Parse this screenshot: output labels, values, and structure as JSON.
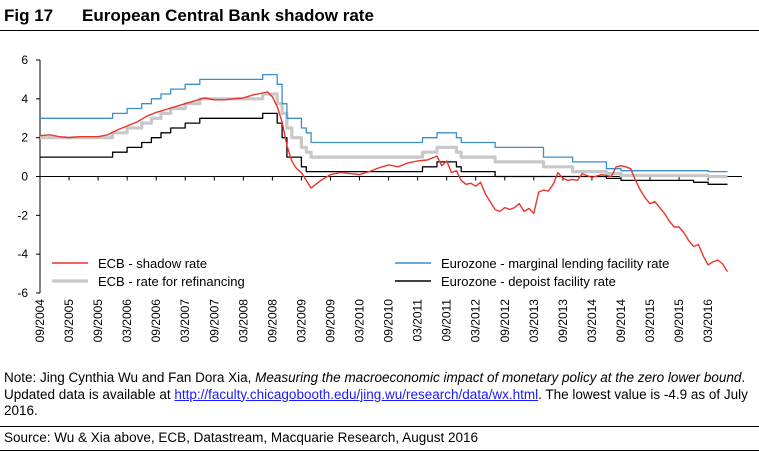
{
  "figure": {
    "number": "Fig 17",
    "title": "European Central Bank shadow rate"
  },
  "note": {
    "prefix": "Note: Jing Cynthia Wu and Fan Dora Xia, ",
    "italic": "Measuring the macroeconomic impact of monetary policy at the zero lower bound",
    "middle": ". Updated data is available at ",
    "link": "http://faculty.chicagobooth.edu/jing.wu/research/data/wx.html",
    "suffix": ". The lowest value is -4.9 as of July 2016."
  },
  "source": "Source: Wu & Xia above, ECB, Datastream, Macquarie Research, August 2016",
  "colors": {
    "shadow": "#e8352b",
    "refi": "#c8c8c8",
    "marginal": "#3a8fc8",
    "deposit": "#000000"
  },
  "chart_data": {
    "type": "line",
    "title": "European Central Bank shadow rate",
    "xlabel": "",
    "ylabel": "",
    "ylim": [
      -6,
      6
    ],
    "yticks": [
      "-6",
      "-4",
      "-2",
      "0",
      "2",
      "4",
      "6"
    ],
    "xlim": [
      "2004-09",
      "2016-10"
    ],
    "xticks": [
      "09/2004",
      "03/2005",
      "09/2005",
      "03/2006",
      "09/2006",
      "03/2007",
      "09/2007",
      "03/2008",
      "09/2008",
      "03/2009",
      "09/2009",
      "03/2010",
      "09/2010",
      "03/2011",
      "09/2011",
      "03/2012",
      "09/2012",
      "03/2013",
      "09/2013",
      "03/2014",
      "09/2014",
      "03/2015",
      "09/2015",
      "03/2016"
    ],
    "grid": false,
    "legend_position": "bottom",
    "legend_order": [
      "ECB - shadow rate",
      "Eurozone - marginal lending facility rate",
      "ECB - rate for refinancing",
      "Eurozone - depoist facility rate"
    ],
    "series": [
      {
        "name": "ECB - shadow rate",
        "color_key": "shadow",
        "width": 1.4,
        "points": [
          [
            "2004-09",
            2.1
          ],
          [
            "2004-11",
            2.15
          ],
          [
            "2005-01",
            2.05
          ],
          [
            "2005-03",
            2.0
          ],
          [
            "2005-05",
            2.05
          ],
          [
            "2005-07",
            2.05
          ],
          [
            "2005-09",
            2.05
          ],
          [
            "2005-11",
            2.15
          ],
          [
            "2006-01",
            2.4
          ],
          [
            "2006-03",
            2.6
          ],
          [
            "2006-05",
            2.8
          ],
          [
            "2006-07",
            3.1
          ],
          [
            "2006-09",
            3.3
          ],
          [
            "2006-11",
            3.45
          ],
          [
            "2007-01",
            3.6
          ],
          [
            "2007-03",
            3.75
          ],
          [
            "2007-05",
            3.9
          ],
          [
            "2007-07",
            4.05
          ],
          [
            "2007-09",
            3.95
          ],
          [
            "2007-11",
            3.95
          ],
          [
            "2008-01",
            4.0
          ],
          [
            "2008-03",
            4.05
          ],
          [
            "2008-05",
            4.2
          ],
          [
            "2008-07",
            4.3
          ],
          [
            "2008-08",
            4.35
          ],
          [
            "2008-09",
            4.1
          ],
          [
            "2008-10",
            3.6
          ],
          [
            "2008-11",
            2.8
          ],
          [
            "2008-12",
            1.6
          ],
          [
            "2009-01",
            0.8
          ],
          [
            "2009-02",
            0.4
          ],
          [
            "2009-03",
            0.2
          ],
          [
            "2009-04",
            -0.2
          ],
          [
            "2009-05",
            -0.6
          ],
          [
            "2009-07",
            -0.2
          ],
          [
            "2009-09",
            0.1
          ],
          [
            "2009-11",
            0.2
          ],
          [
            "2010-01",
            0.15
          ],
          [
            "2010-03",
            0.1
          ],
          [
            "2010-05",
            0.25
          ],
          [
            "2010-07",
            0.45
          ],
          [
            "2010-09",
            0.6
          ],
          [
            "2010-11",
            0.5
          ],
          [
            "2011-01",
            0.7
          ],
          [
            "2011-03",
            0.8
          ],
          [
            "2011-05",
            0.85
          ],
          [
            "2011-07",
            1.05
          ],
          [
            "2011-08",
            0.55
          ],
          [
            "2011-09",
            0.8
          ],
          [
            "2011-10",
            0.2
          ],
          [
            "2011-11",
            0.3
          ],
          [
            "2011-12",
            -0.2
          ],
          [
            "2012-01",
            -0.4
          ],
          [
            "2012-02",
            -0.35
          ],
          [
            "2012-03",
            -0.5
          ],
          [
            "2012-04",
            -0.3
          ],
          [
            "2012-05",
            -0.9
          ],
          [
            "2012-06",
            -1.3
          ],
          [
            "2012-07",
            -1.7
          ],
          [
            "2012-08",
            -1.8
          ],
          [
            "2012-09",
            -1.6
          ],
          [
            "2012-10",
            -1.7
          ],
          [
            "2012-11",
            -1.6
          ],
          [
            "2012-12",
            -1.4
          ],
          [
            "2013-01",
            -1.8
          ],
          [
            "2013-02",
            -1.65
          ],
          [
            "2013-03",
            -1.9
          ],
          [
            "2013-04",
            -0.8
          ],
          [
            "2013-05",
            -0.7
          ],
          [
            "2013-06",
            -0.75
          ],
          [
            "2013-07",
            -0.4
          ],
          [
            "2013-08",
            0.2
          ],
          [
            "2013-09",
            -0.1
          ],
          [
            "2013-10",
            -0.2
          ],
          [
            "2013-11",
            -0.15
          ],
          [
            "2013-12",
            -0.2
          ],
          [
            "2014-01",
            0.15
          ],
          [
            "2014-03",
            -0.05
          ],
          [
            "2014-05",
            0.1
          ],
          [
            "2014-07",
            0.0
          ],
          [
            "2014-08",
            0.5
          ],
          [
            "2014-09",
            0.55
          ],
          [
            "2014-10",
            0.5
          ],
          [
            "2014-11",
            0.4
          ],
          [
            "2014-12",
            -0.2
          ],
          [
            "2015-01",
            -0.7
          ],
          [
            "2015-02",
            -1.1
          ],
          [
            "2015-03",
            -1.4
          ],
          [
            "2015-04",
            -1.3
          ],
          [
            "2015-05",
            -1.6
          ],
          [
            "2015-06",
            -1.9
          ],
          [
            "2015-07",
            -2.3
          ],
          [
            "2015-08",
            -2.6
          ],
          [
            "2015-09",
            -2.6
          ],
          [
            "2015-10",
            -2.9
          ],
          [
            "2015-11",
            -3.3
          ],
          [
            "2015-12",
            -3.6
          ],
          [
            "2016-01",
            -3.5
          ],
          [
            "2016-02",
            -4.1
          ],
          [
            "2016-03",
            -4.55
          ],
          [
            "2016-04",
            -4.4
          ],
          [
            "2016-05",
            -4.3
          ],
          [
            "2016-06",
            -4.5
          ],
          [
            "2016-07",
            -4.9
          ]
        ]
      },
      {
        "name": "Eurozone - marginal lending facility rate",
        "color_key": "marginal",
        "width": 1.3,
        "points": [
          [
            "2004-09",
            3.0
          ],
          [
            "2005-12",
            3.0
          ],
          [
            "2005-12",
            3.25
          ],
          [
            "2006-03",
            3.25
          ],
          [
            "2006-03",
            3.5
          ],
          [
            "2006-06",
            3.5
          ],
          [
            "2006-06",
            3.75
          ],
          [
            "2006-08",
            3.75
          ],
          [
            "2006-08",
            4.0
          ],
          [
            "2006-10",
            4.0
          ],
          [
            "2006-10",
            4.25
          ],
          [
            "2006-12",
            4.25
          ],
          [
            "2006-12",
            4.5
          ],
          [
            "2007-03",
            4.5
          ],
          [
            "2007-03",
            4.75
          ],
          [
            "2007-06",
            4.75
          ],
          [
            "2007-06",
            5.0
          ],
          [
            "2008-07",
            5.0
          ],
          [
            "2008-07",
            5.25
          ],
          [
            "2008-10",
            5.25
          ],
          [
            "2008-10",
            4.75
          ],
          [
            "2008-11",
            4.75
          ],
          [
            "2008-11",
            3.75
          ],
          [
            "2008-12",
            3.75
          ],
          [
            "2008-12",
            3.0
          ],
          [
            "2009-01",
            3.0
          ],
          [
            "2009-01",
            3.0
          ],
          [
            "2009-03",
            3.0
          ],
          [
            "2009-03",
            2.5
          ],
          [
            "2009-04",
            2.5
          ],
          [
            "2009-04",
            2.25
          ],
          [
            "2009-05",
            2.25
          ],
          [
            "2009-05",
            1.75
          ],
          [
            "2011-04",
            1.75
          ],
          [
            "2011-04",
            2.0
          ],
          [
            "2011-07",
            2.0
          ],
          [
            "2011-07",
            2.25
          ],
          [
            "2011-11",
            2.25
          ],
          [
            "2011-11",
            2.0
          ],
          [
            "2011-12",
            2.0
          ],
          [
            "2011-12",
            1.75
          ],
          [
            "2012-07",
            1.75
          ],
          [
            "2012-07",
            1.5
          ],
          [
            "2013-05",
            1.5
          ],
          [
            "2013-05",
            1.0
          ],
          [
            "2013-11",
            1.0
          ],
          [
            "2013-11",
            0.75
          ],
          [
            "2014-06",
            0.75
          ],
          [
            "2014-06",
            0.4
          ],
          [
            "2014-09",
            0.4
          ],
          [
            "2014-09",
            0.3
          ],
          [
            "2016-03",
            0.3
          ],
          [
            "2016-03",
            0.25
          ],
          [
            "2016-07",
            0.25
          ]
        ]
      },
      {
        "name": "ECB - rate for refinancing",
        "color_key": "refi",
        "width": 3.2,
        "points": [
          [
            "2004-09",
            2.0
          ],
          [
            "2005-12",
            2.0
          ],
          [
            "2005-12",
            2.25
          ],
          [
            "2006-03",
            2.25
          ],
          [
            "2006-03",
            2.5
          ],
          [
            "2006-06",
            2.5
          ],
          [
            "2006-06",
            2.75
          ],
          [
            "2006-08",
            2.75
          ],
          [
            "2006-08",
            3.0
          ],
          [
            "2006-10",
            3.0
          ],
          [
            "2006-10",
            3.25
          ],
          [
            "2006-12",
            3.25
          ],
          [
            "2006-12",
            3.5
          ],
          [
            "2007-03",
            3.5
          ],
          [
            "2007-03",
            3.75
          ],
          [
            "2007-06",
            3.75
          ],
          [
            "2007-06",
            4.0
          ],
          [
            "2008-07",
            4.0
          ],
          [
            "2008-07",
            4.25
          ],
          [
            "2008-10",
            4.25
          ],
          [
            "2008-10",
            3.75
          ],
          [
            "2008-11",
            3.75
          ],
          [
            "2008-11",
            3.25
          ],
          [
            "2008-12",
            3.25
          ],
          [
            "2008-12",
            2.5
          ],
          [
            "2009-01",
            2.5
          ],
          [
            "2009-01",
            2.0
          ],
          [
            "2009-03",
            2.0
          ],
          [
            "2009-03",
            1.5
          ],
          [
            "2009-04",
            1.5
          ],
          [
            "2009-04",
            1.25
          ],
          [
            "2009-05",
            1.25
          ],
          [
            "2009-05",
            1.0
          ],
          [
            "2011-04",
            1.0
          ],
          [
            "2011-04",
            1.25
          ],
          [
            "2011-07",
            1.25
          ],
          [
            "2011-07",
            1.5
          ],
          [
            "2011-11",
            1.5
          ],
          [
            "2011-11",
            1.25
          ],
          [
            "2011-12",
            1.25
          ],
          [
            "2011-12",
            1.0
          ],
          [
            "2012-07",
            1.0
          ],
          [
            "2012-07",
            0.75
          ],
          [
            "2013-05",
            0.75
          ],
          [
            "2013-05",
            0.5
          ],
          [
            "2013-11",
            0.5
          ],
          [
            "2013-11",
            0.25
          ],
          [
            "2014-06",
            0.25
          ],
          [
            "2014-06",
            0.15
          ],
          [
            "2014-09",
            0.15
          ],
          [
            "2014-09",
            0.05
          ],
          [
            "2016-03",
            0.05
          ],
          [
            "2016-03",
            0.0
          ],
          [
            "2016-07",
            0.0
          ]
        ]
      },
      {
        "name": "Eurozone - depoist facility rate",
        "color_key": "deposit",
        "width": 1.3,
        "points": [
          [
            "2004-09",
            1.0
          ],
          [
            "2005-12",
            1.0
          ],
          [
            "2005-12",
            1.25
          ],
          [
            "2006-03",
            1.25
          ],
          [
            "2006-03",
            1.5
          ],
          [
            "2006-06",
            1.5
          ],
          [
            "2006-06",
            1.75
          ],
          [
            "2006-08",
            1.75
          ],
          [
            "2006-08",
            2.0
          ],
          [
            "2006-10",
            2.0
          ],
          [
            "2006-10",
            2.25
          ],
          [
            "2006-12",
            2.25
          ],
          [
            "2006-12",
            2.5
          ],
          [
            "2007-03",
            2.5
          ],
          [
            "2007-03",
            2.75
          ],
          [
            "2007-06",
            2.75
          ],
          [
            "2007-06",
            3.0
          ],
          [
            "2008-07",
            3.0
          ],
          [
            "2008-07",
            3.25
          ],
          [
            "2008-10",
            3.25
          ],
          [
            "2008-10",
            2.75
          ],
          [
            "2008-11",
            2.75
          ],
          [
            "2008-11",
            2.0
          ],
          [
            "2008-12",
            2.0
          ],
          [
            "2008-12",
            1.0
          ],
          [
            "2009-01",
            1.0
          ],
          [
            "2009-01",
            1.0
          ],
          [
            "2009-03",
            1.0
          ],
          [
            "2009-03",
            0.5
          ],
          [
            "2009-04",
            0.5
          ],
          [
            "2009-04",
            0.25
          ],
          [
            "2011-04",
            0.25
          ],
          [
            "2011-04",
            0.5
          ],
          [
            "2011-07",
            0.5
          ],
          [
            "2011-07",
            0.75
          ],
          [
            "2011-11",
            0.75
          ],
          [
            "2011-11",
            0.5
          ],
          [
            "2011-12",
            0.5
          ],
          [
            "2011-12",
            0.25
          ],
          [
            "2012-07",
            0.25
          ],
          [
            "2012-07",
            0.0
          ],
          [
            "2014-06",
            0.0
          ],
          [
            "2014-06",
            -0.1
          ],
          [
            "2014-09",
            -0.1
          ],
          [
            "2014-09",
            -0.2
          ],
          [
            "2015-12",
            -0.2
          ],
          [
            "2015-12",
            -0.3
          ],
          [
            "2016-03",
            -0.3
          ],
          [
            "2016-03",
            -0.4
          ],
          [
            "2016-07",
            -0.4
          ]
        ]
      }
    ]
  }
}
